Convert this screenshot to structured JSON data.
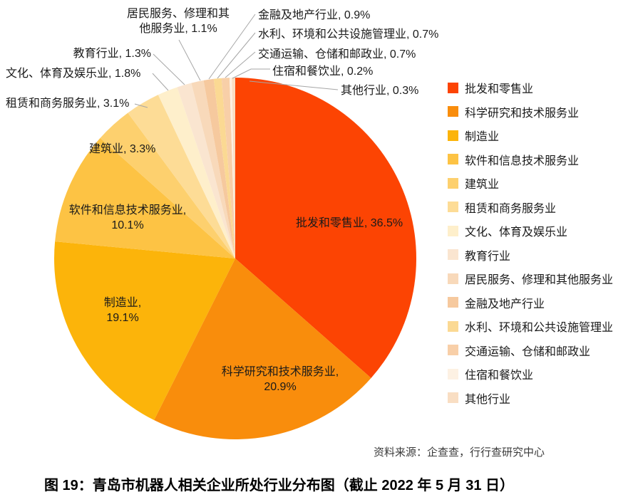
{
  "chart_data": {
    "type": "pie",
    "title": "图 19：青岛市机器人相关企业所处行业分布图（截止 2022 年 5 月 31 日）",
    "source": "资料来源：企查查，行行查研究中心",
    "categories": [
      "批发和零售业",
      "科学研究和技术服务业",
      "制造业",
      "软件和信息技术服务业",
      "建筑业",
      "租赁和商务服务业",
      "文化、体育及娱乐业",
      "教育行业",
      "居民服务、修理和其他服务业",
      "金融及地产行业",
      "水利、环境和公共设施管理业",
      "交通运输、仓储和邮政业",
      "住宿和餐饮业",
      "其他行业"
    ],
    "values": [
      36.5,
      20.9,
      19.1,
      10.1,
      3.3,
      3.1,
      1.8,
      1.3,
      1.1,
      0.9,
      0.7,
      0.7,
      0.2,
      0.3
    ],
    "colors": [
      "#FC4403",
      "#F98D0C",
      "#FCB40A",
      "#FDC344",
      "#FDD06E",
      "#FDDC96",
      "#FEEFCB",
      "#FAE5D0",
      "#F8D9BA",
      "#F6C99E",
      "#FBD993",
      "#F8CFA8",
      "#FDF1E3",
      "#F9DEC3"
    ],
    "unit": "%",
    "start_angle_deg": 0,
    "direction": "clockwise",
    "legend_position": "right",
    "label_format": "{name}, {value}%",
    "leader_line_color": "#A6A6A6"
  }
}
